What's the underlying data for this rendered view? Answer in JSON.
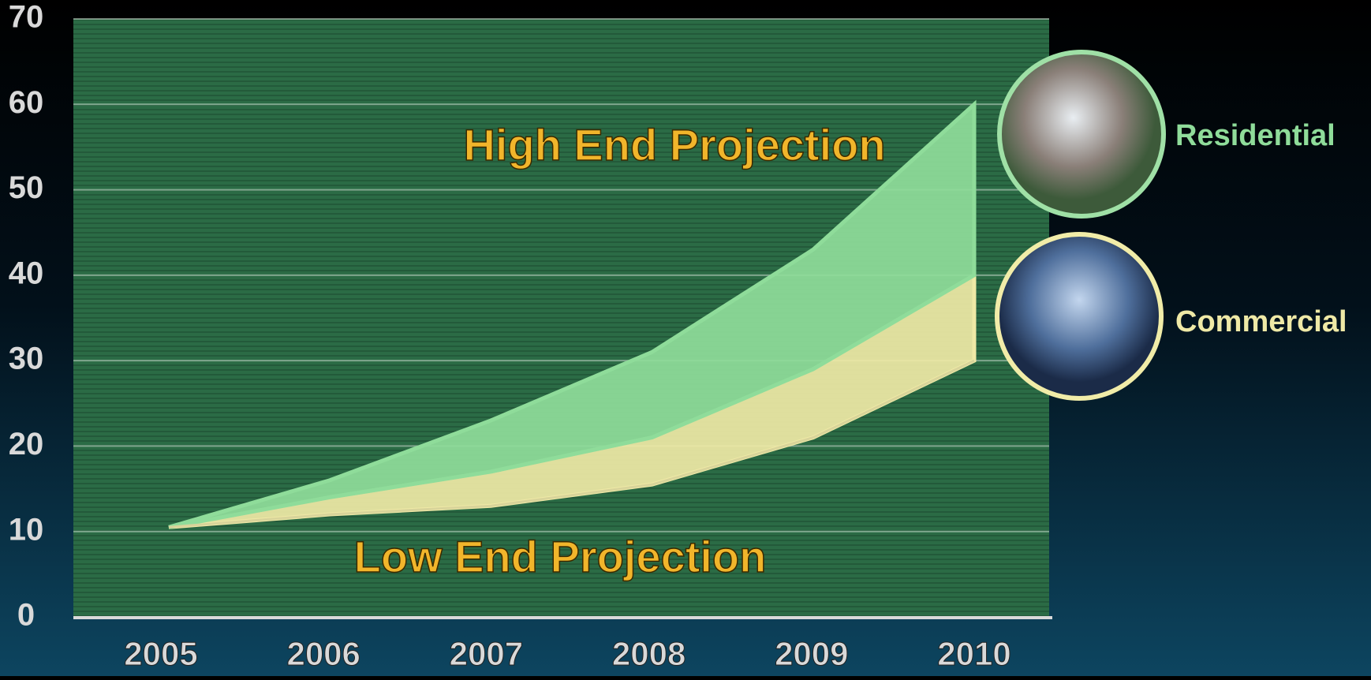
{
  "chart_data": {
    "type": "area",
    "categories": [
      "2005",
      "2006",
      "2007",
      "2008",
      "2009",
      "2010"
    ],
    "baseline": [
      10.5,
      12,
      13,
      15.5,
      21,
      30
    ],
    "series": [
      {
        "name": "Commercial",
        "color": "#efe9a6",
        "values": [
          0,
          2,
          4,
          5.5,
          8,
          10
        ]
      },
      {
        "name": "Residential",
        "color": "#8fdc9a",
        "values": [
          0,
          2,
          6,
          10,
          14,
          20
        ]
      }
    ],
    "annotations": [
      "High End Projection",
      "Low End Projection"
    ],
    "ylim": [
      0,
      70
    ],
    "yticks": [
      0,
      10,
      20,
      30,
      40,
      50,
      60,
      70
    ],
    "grid": true
  }
}
